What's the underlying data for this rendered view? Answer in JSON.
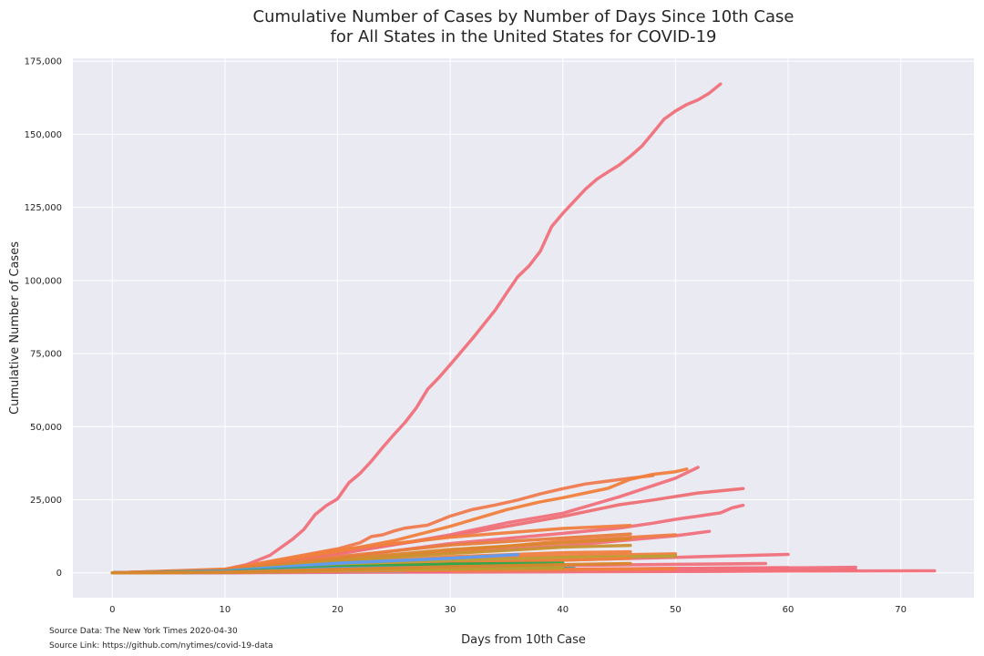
{
  "chart_data": {
    "type": "line",
    "title_lines": [
      "Cumulative Number of Cases by Number of Days Since 10th Case",
      "for All States in the United States for COVID-19"
    ],
    "xlabel": "Days from 10th Case",
    "ylabel": "Cumulative Number of Cases",
    "xlim": [
      -3.5,
      76.5
    ],
    "ylim": [
      -8500,
      176000
    ],
    "xticks": [
      0,
      10,
      20,
      30,
      40,
      50,
      60,
      70
    ],
    "xtick_labels": [
      "0",
      "10",
      "20",
      "30",
      "40",
      "50",
      "60",
      "70"
    ],
    "yticks": [
      0,
      25000,
      50000,
      75000,
      100000,
      125000,
      150000,
      175000
    ],
    "ytick_labels": [
      "0",
      "25,000",
      "50,000",
      "75,000",
      "100,000",
      "125,000",
      "150,000",
      "175,000"
    ],
    "grid": true,
    "legend": "none",
    "series": [
      {
        "color": "#f0707a",
        "x": [
          0,
          5,
          10,
          12,
          14,
          16,
          17,
          18,
          19,
          20,
          21,
          22,
          23,
          24,
          25,
          26,
          27,
          28,
          29,
          30,
          32,
          34,
          35,
          36,
          37,
          38,
          39,
          40,
          41,
          42,
          43,
          44,
          45,
          46,
          47,
          48,
          49,
          50,
          51,
          52,
          53,
          54
        ],
        "y": [
          0,
          300,
          1200,
          2900,
          6000,
          11500,
          14800,
          19900,
          23000,
          25300,
          30800,
          34000,
          38200,
          42900,
          47300,
          51500,
          56500,
          62800,
          66800,
          71200,
          80300,
          89900,
          95700,
          101300,
          105000,
          110000,
          118400,
          123000,
          127100,
          131200,
          134600,
          137100,
          139500,
          142500,
          145900,
          150500,
          155200,
          158000,
          160200,
          161800,
          164100,
          167200
        ]
      },
      {
        "color": "#f0707a",
        "x": [
          0,
          10,
          15,
          20,
          25,
          30,
          35,
          40,
          45,
          50,
          52
        ],
        "y": [
          0,
          900,
          3500,
          6400,
          9600,
          13000,
          17100,
          20400,
          26000,
          32400,
          36100
        ]
      },
      {
        "color": "#ee6f73",
        "x": [
          0,
          10,
          20,
          30,
          40,
          45,
          48,
          52,
          56
        ],
        "y": [
          0,
          1000,
          6800,
          12500,
          19300,
          23300,
          24900,
          27300,
          28800
        ]
      },
      {
        "color": "#f0707a",
        "x": [
          0,
          10,
          20,
          30,
          40,
          45,
          48,
          50,
          52,
          54,
          55,
          56
        ],
        "y": [
          0,
          700,
          5000,
          10000,
          13500,
          15300,
          17000,
          18300,
          19400,
          20500,
          22200,
          23100
        ]
      },
      {
        "color": "#f07b4e",
        "x": [
          0,
          10,
          20,
          22,
          23,
          24,
          25,
          26,
          27,
          28,
          30,
          32,
          34,
          36,
          38,
          40,
          42,
          44,
          46,
          48
        ],
        "y": [
          0,
          1100,
          8200,
          10300,
          12400,
          13000,
          14300,
          15300,
          15800,
          16300,
          19400,
          21700,
          23200,
          24900,
          27000,
          28800,
          30400,
          31400,
          32400,
          33300
        ]
      },
      {
        "color": "#f0803c",
        "x": [
          0,
          10,
          20,
          25,
          30,
          35,
          38,
          40,
          44,
          46,
          48,
          50,
          51
        ],
        "y": [
          0,
          1300,
          7300,
          11000,
          15900,
          21600,
          24300,
          25700,
          28900,
          32000,
          33700,
          34600,
          35500
        ]
      },
      {
        "color": "#ef7f3e",
        "x": [
          0,
          10,
          20,
          30,
          40,
          46
        ],
        "y": [
          0,
          1100,
          7900,
          12200,
          15200,
          16200
        ]
      },
      {
        "color": "#f0707a",
        "x": [
          0,
          10,
          20,
          30,
          40,
          50,
          53
        ],
        "y": [
          0,
          800,
          4000,
          7000,
          9200,
          12700,
          14200
        ]
      },
      {
        "color": "#ee7d48",
        "x": [
          0,
          10,
          20,
          30,
          40,
          50
        ],
        "y": [
          0,
          600,
          3800,
          7300,
          10900,
          13000
        ]
      },
      {
        "color": "#e77d3c",
        "x": [
          0,
          10,
          20,
          30,
          40,
          46
        ],
        "y": [
          0,
          900,
          5500,
          9500,
          11900,
          13300
        ]
      },
      {
        "color": "#d9862c",
        "x": [
          0,
          10,
          20,
          30,
          40,
          46
        ],
        "y": [
          0,
          700,
          4600,
          8000,
          10300,
          11700
        ]
      },
      {
        "color": "#c89430",
        "x": [
          0,
          10,
          20,
          30,
          40,
          46
        ],
        "y": [
          0,
          600,
          4000,
          6600,
          8800,
          9400
        ]
      },
      {
        "color": "#ef7f3e",
        "x": [
          0,
          10,
          20,
          30,
          40,
          50
        ],
        "y": [
          0,
          400,
          2500,
          4800,
          5800,
          6500
        ]
      },
      {
        "color": "#ef7f3e",
        "x": [
          0,
          10,
          20,
          30,
          40,
          46
        ],
        "y": [
          0,
          500,
          3000,
          5500,
          6900,
          7200
        ]
      },
      {
        "color": "#f0707a",
        "x": [
          0,
          10,
          20,
          30,
          40,
          50,
          60
        ],
        "y": [
          0,
          300,
          1700,
          3200,
          4400,
          5300,
          6300
        ]
      },
      {
        "color": "#b8a032",
        "x": [
          0,
          10,
          20,
          30,
          40,
          50
        ],
        "y": [
          0,
          400,
          2600,
          4100,
          5200,
          5700
        ]
      },
      {
        "color": "#5b9bf5",
        "x": [
          0,
          10,
          20,
          30,
          36
        ],
        "y": [
          0,
          600,
          3300,
          5000,
          6200
        ]
      },
      {
        "color": "#f0707a",
        "x": [
          0,
          10,
          20,
          30,
          40,
          50,
          58
        ],
        "y": [
          0,
          200,
          1000,
          1800,
          2500,
          2900,
          3200
        ]
      },
      {
        "color": "#f0707a",
        "x": [
          0,
          10,
          20,
          30,
          40,
          50,
          60,
          66
        ],
        "y": [
          0,
          100,
          500,
          900,
          1200,
          1500,
          1700,
          1900
        ]
      },
      {
        "color": "#f0707a",
        "x": [
          0,
          10,
          20,
          30,
          40,
          50,
          60,
          66
        ],
        "y": [
          0,
          80,
          300,
          500,
          700,
          800,
          900,
          1000
        ]
      },
      {
        "color": "#f0707a",
        "x": [
          0,
          10,
          20,
          30,
          40,
          50,
          60,
          73
        ],
        "y": [
          0,
          50,
          150,
          250,
          350,
          450,
          600,
          700
        ]
      },
      {
        "color": "#ef7f3e",
        "x": [
          0,
          10,
          20,
          30,
          40,
          46
        ],
        "y": [
          0,
          300,
          1900,
          3300,
          4300,
          5000
        ]
      },
      {
        "color": "#2aa84a",
        "x": [
          0,
          10,
          20,
          30,
          40
        ],
        "y": [
          0,
          400,
          2000,
          3000,
          3300
        ]
      },
      {
        "color": "#2aa84a",
        "x": [
          0,
          10,
          20,
          30,
          39
        ],
        "y": [
          0,
          300,
          1500,
          2300,
          2700
        ]
      },
      {
        "color": "#27a58a",
        "x": [
          0,
          10,
          20,
          30,
          41
        ],
        "y": [
          0,
          200,
          1000,
          1300,
          1500
        ]
      },
      {
        "color": "#2aa84a",
        "x": [
          0,
          10,
          20,
          30,
          41
        ],
        "y": [
          0,
          200,
          800,
          1000,
          1200
        ]
      },
      {
        "color": "#5b9bf5",
        "x": [
          0,
          10,
          20,
          30,
          35
        ],
        "y": [
          0,
          300,
          1500,
          2000,
          2300
        ]
      },
      {
        "color": "#4aa0e8",
        "x": [
          0,
          10,
          20,
          30,
          35
        ],
        "y": [
          0,
          200,
          900,
          1200,
          1400
        ]
      },
      {
        "color": "#e64fd6",
        "x": [
          0,
          10,
          20,
          30
        ],
        "y": [
          0,
          200,
          800,
          1000
        ]
      },
      {
        "color": "#e64fd6",
        "x": [
          0,
          10,
          20,
          30
        ],
        "y": [
          0,
          100,
          400,
          600
        ]
      },
      {
        "color": "#b868f0",
        "x": [
          0,
          10,
          20,
          28
        ],
        "y": [
          0,
          150,
          600,
          800
        ]
      },
      {
        "color": "#8c96e8",
        "x": [
          0,
          10,
          20,
          26
        ],
        "y": [
          0,
          100,
          400,
          500
        ]
      },
      {
        "color": "#f0707a",
        "x": [
          0,
          10,
          20,
          30,
          40,
          50,
          60
        ],
        "y": [
          0,
          150,
          600,
          900,
          1200,
          1500,
          1800
        ]
      },
      {
        "color": "#ef7f3e",
        "x": [
          0,
          10,
          20,
          30,
          40,
          50
        ],
        "y": [
          0,
          100,
          500,
          800,
          1100,
          1400
        ]
      },
      {
        "color": "#b8a032",
        "x": [
          0,
          10,
          20,
          30,
          40
        ],
        "y": [
          0,
          200,
          1000,
          1400,
          1700
        ]
      },
      {
        "color": "#d9862c",
        "x": [
          0,
          10,
          20,
          30,
          40,
          46
        ],
        "y": [
          0,
          200,
          1200,
          2100,
          2800,
          3200
        ]
      }
    ]
  },
  "source": {
    "data_line": "Source Data: The New York Times 2020-04-30",
    "link_line": "Source Link: https://github.com/nytimes/covid-19-data"
  }
}
